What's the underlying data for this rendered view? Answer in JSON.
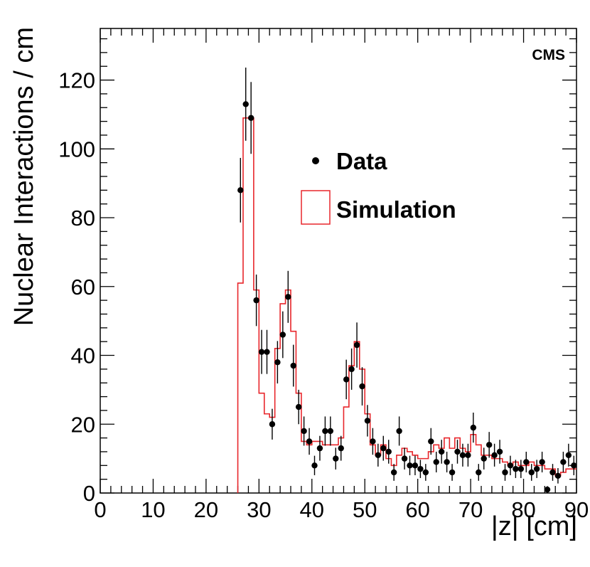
{
  "chart_data": {
    "type": "histogram",
    "experiment_label": "CMS",
    "xlabel": "|z| [cm]",
    "ylabel": "Nuclear Interactions / cm",
    "xlim": [
      0,
      90
    ],
    "ylim": [
      0,
      135
    ],
    "x_ticks": [
      0,
      10,
      20,
      30,
      40,
      50,
      60,
      70,
      80,
      90
    ],
    "y_ticks": [
      0,
      20,
      40,
      60,
      80,
      100,
      120
    ],
    "grid": false,
    "legend_position": "upper-center",
    "series": [
      {
        "name": "Data",
        "style": "points-with-error-bars",
        "color": "#000000",
        "x": [
          27,
          28,
          29,
          30,
          31,
          32,
          33,
          34,
          35,
          36,
          37,
          38,
          39,
          40,
          41,
          42,
          43,
          44,
          45,
          46,
          47,
          48,
          49,
          50,
          51,
          52,
          53,
          54,
          55,
          56,
          57,
          58,
          59,
          60,
          61,
          62,
          63,
          64,
          65,
          66,
          67,
          68,
          69,
          70,
          71,
          72,
          73,
          74,
          75,
          76,
          77,
          78,
          79,
          80,
          81,
          82,
          83,
          84,
          85,
          86,
          87,
          88,
          89,
          90
        ],
        "y": [
          88,
          113,
          109,
          56,
          41,
          41,
          20,
          38,
          46,
          57,
          37,
          25,
          18,
          15,
          8,
          13,
          18,
          18,
          10,
          13,
          33,
          36,
          43,
          31,
          21,
          15,
          11,
          13,
          12,
          6,
          18,
          10,
          8,
          8,
          7,
          6,
          15,
          9,
          12,
          9,
          6,
          12,
          11,
          11,
          19,
          6,
          10,
          14,
          11,
          12,
          6,
          8,
          7,
          7,
          9,
          6,
          7,
          9,
          1,
          6,
          5,
          9,
          11,
          8
        ]
      },
      {
        "name": "Simulation",
        "style": "step-histogram",
        "color": "#e8262b",
        "bin_width": 1,
        "bin_low_edges": [
          26,
          27,
          28,
          29,
          30,
          31,
          32,
          33,
          34,
          35,
          36,
          37,
          38,
          39,
          40,
          41,
          42,
          43,
          44,
          45,
          46,
          47,
          48,
          49,
          50,
          51,
          52,
          53,
          54,
          55,
          56,
          57,
          58,
          59,
          60,
          61,
          62,
          63,
          64,
          65,
          66,
          67,
          68,
          69,
          70,
          71,
          72,
          73,
          74,
          75,
          76,
          77,
          78,
          79,
          80,
          81,
          82,
          83,
          84,
          85,
          86,
          87,
          88,
          89
        ],
        "values": [
          61,
          109,
          109,
          59,
          29,
          23,
          22,
          42,
          55,
          59,
          47,
          29,
          15,
          14,
          15,
          15,
          14,
          14,
          14,
          16,
          25,
          37,
          44,
          36,
          23,
          14,
          11,
          14,
          10,
          8,
          11,
          13,
          12,
          11,
          10,
          10,
          12,
          14,
          13,
          16,
          13,
          16,
          13,
          12,
          17,
          14,
          11,
          11,
          10,
          10,
          9,
          8,
          9,
          8,
          8,
          9,
          8,
          8,
          7,
          7,
          5,
          6,
          7,
          7
        ]
      }
    ],
    "legend": [
      {
        "label": "Data",
        "symbol": "point"
      },
      {
        "label": "Simulation",
        "symbol": "box"
      }
    ]
  }
}
